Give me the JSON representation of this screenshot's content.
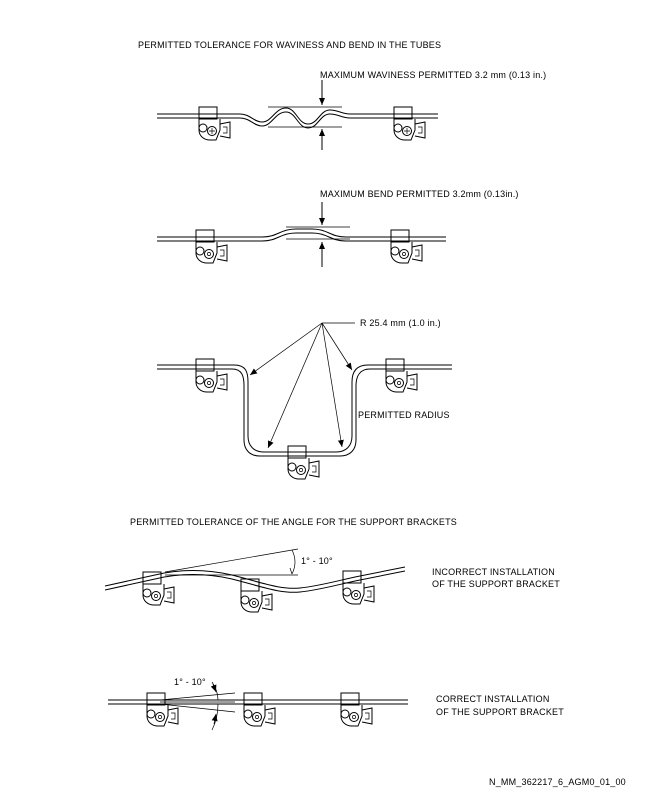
{
  "labels": {
    "title_waviness_bend": "PERMITTED TOLERANCE FOR WAVINESS AND BEND IN THE TUBES",
    "max_waviness": "MAXIMUM WAVINESS PERMITTED 3.2 mm (0.13 in.)",
    "max_bend": "MAXIMUM BEND PERMITTED 3.2mm (0.13in.)",
    "radius_value": "R 25.4 mm (1.0 in.)",
    "permitted_radius": "PERMITTED RADIUS",
    "title_angle": "PERMITTED TOLERANCE OF THE ANGLE FOR THE SUPPORT BRACKETS",
    "angle_incorrect": "1° - 10°",
    "incorrect_line1": "INCORRECT INSTALLATION",
    "incorrect_line2": "OF THE SUPPORT BRACKET",
    "angle_correct": "1° - 10°",
    "correct_line1": "CORRECT INSTALLATION",
    "correct_line2": "OF THE SUPPORT BRACKET",
    "figure_id": "N_MM_362217_6_AGM0_01_00"
  }
}
